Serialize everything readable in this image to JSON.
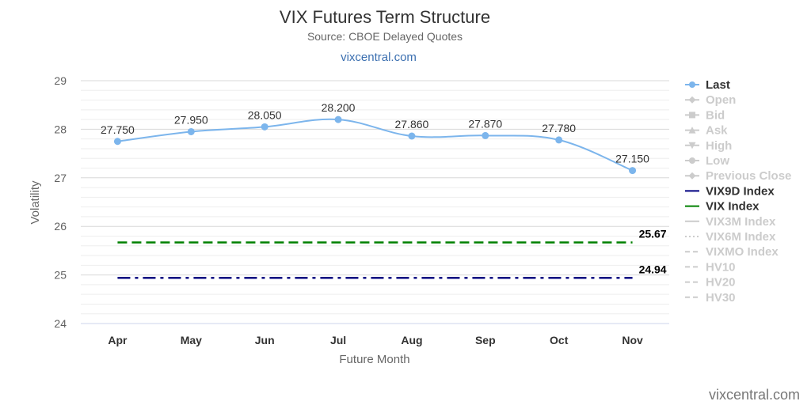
{
  "header": {
    "title": "VIX Futures Term Structure",
    "subtitle": "Source: CBOE Delayed Quotes",
    "link": "vixcentral.com"
  },
  "credit": "vixcentral.com",
  "chart_data": {
    "type": "line",
    "title": "VIX Futures Term Structure",
    "subtitle": "Source: CBOE Delayed Quotes",
    "xlabel": "Future Month",
    "ylabel": "Volatility",
    "ylim": [
      24,
      29
    ],
    "yticks": [
      24,
      25,
      26,
      27,
      28,
      29
    ],
    "grid": true,
    "legend_position": "right",
    "categories": [
      "Apr",
      "May",
      "Jun",
      "Jul",
      "Aug",
      "Sep",
      "Oct",
      "Nov"
    ],
    "series": [
      {
        "name": "Last",
        "values": [
          27.75,
          27.95,
          28.05,
          28.2,
          27.86,
          27.87,
          27.78,
          27.15
        ],
        "labels": [
          "27.750",
          "27.950",
          "28.050",
          "28.200",
          "27.860",
          "27.870",
          "27.780",
          "27.150"
        ],
        "color": "#7cb5ec"
      },
      {
        "name": "VIX9D Index",
        "value": 24.94,
        "label": "24.94",
        "color": "#000080",
        "dash": "dash-dot"
      },
      {
        "name": "VIX Index",
        "value": 25.67,
        "label": "25.67",
        "color": "#008000",
        "dash": "dash"
      }
    ],
    "legend": [
      {
        "name": "Last",
        "active": true,
        "color": "#7cb5ec",
        "symbol": "circle"
      },
      {
        "name": "Open",
        "active": false,
        "symbol": "diamond"
      },
      {
        "name": "Bid",
        "active": false,
        "symbol": "square"
      },
      {
        "name": "Ask",
        "active": false,
        "symbol": "triangle"
      },
      {
        "name": "High",
        "active": false,
        "symbol": "triangle-down"
      },
      {
        "name": "Low",
        "active": false,
        "symbol": "circle"
      },
      {
        "name": "Previous Close",
        "active": false,
        "symbol": "diamond"
      },
      {
        "name": "VIX9D Index",
        "active": true,
        "color": "#000080",
        "symbol": "line"
      },
      {
        "name": "VIX Index",
        "active": true,
        "color": "#008000",
        "symbol": "line"
      },
      {
        "name": "VIX3M Index",
        "active": false,
        "symbol": "line"
      },
      {
        "name": "VIX6M Index",
        "active": false,
        "symbol": "dotted"
      },
      {
        "name": "VIXMO Index",
        "active": false,
        "symbol": "dashed"
      },
      {
        "name": "HV10",
        "active": false,
        "symbol": "dashed"
      },
      {
        "name": "HV20",
        "active": false,
        "symbol": "dashed"
      },
      {
        "name": "HV30",
        "active": false,
        "symbol": "dashed"
      }
    ]
  }
}
